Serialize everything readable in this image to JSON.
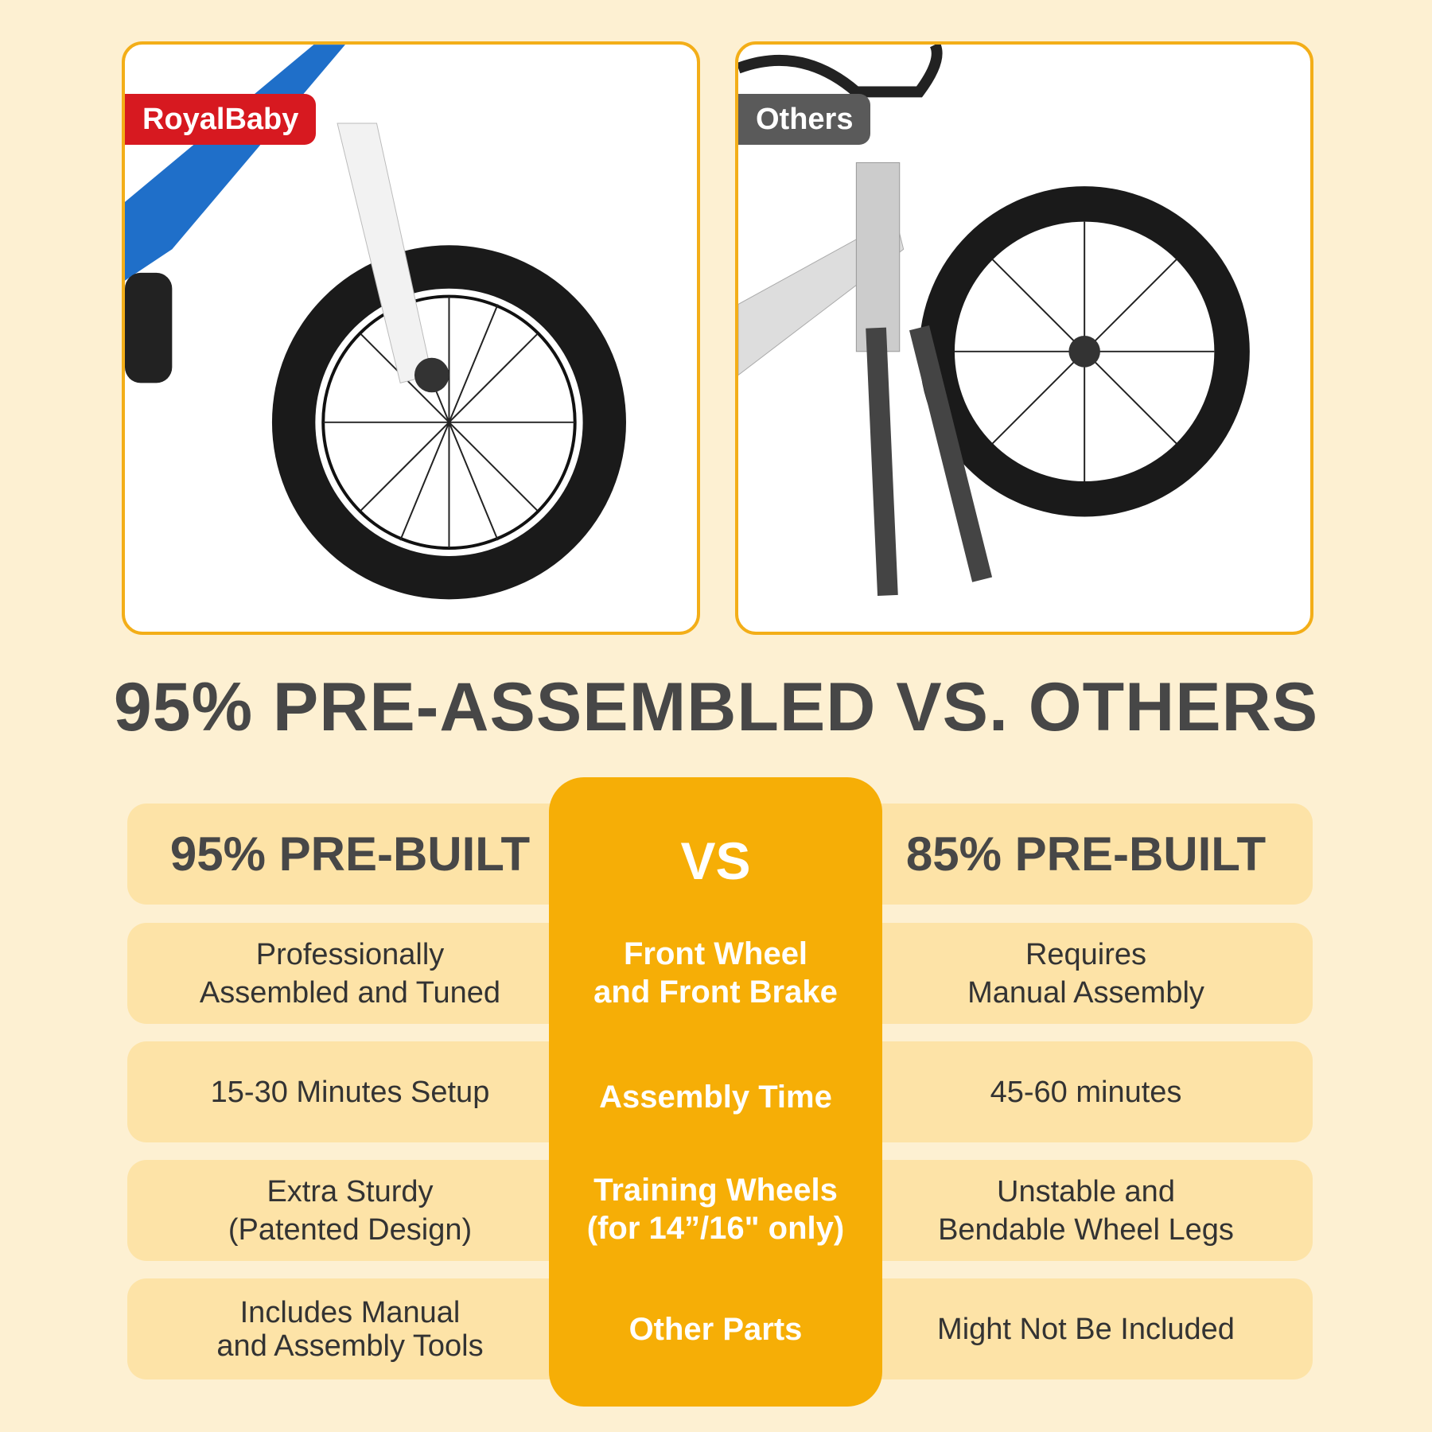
{
  "images": {
    "left": {
      "label": "RoyalBaby",
      "label_color": "#d71920"
    },
    "right": {
      "label": "Others",
      "label_color": "#5a5a5a"
    }
  },
  "title": "95% PRE-ASSEMBLED VS. OTHERS",
  "colors": {
    "background": "#fdf0d2",
    "cell": "#fde3a7",
    "accent": "#f6ae06",
    "border": "#f3ae18"
  },
  "table": {
    "left_header": "95% PRE-BUILT",
    "center_header": "VS",
    "right_header": "85% PRE-BUILT",
    "rows": [
      {
        "left": [
          "Professionally",
          "Assembled and Tuned"
        ],
        "center": [
          "Front Wheel",
          "and Front Brake"
        ],
        "right": [
          "Requires",
          "Manual Assembly"
        ]
      },
      {
        "left": [
          "15-30 Minutes Setup"
        ],
        "center": [
          "Assembly Time"
        ],
        "right": [
          "45-60 minutes"
        ]
      },
      {
        "left": [
          "Extra Sturdy",
          "(Patented Design)"
        ],
        "center": [
          "Training Wheels",
          "(for 14”/16\" only)"
        ],
        "right": [
          "Unstable and",
          "Bendable Wheel Legs"
        ]
      },
      {
        "left": [
          "Includes Manual",
          "and Assembly Tools"
        ],
        "center": [
          "Other Parts"
        ],
        "right": [
          "Might Not Be Included"
        ]
      }
    ]
  }
}
